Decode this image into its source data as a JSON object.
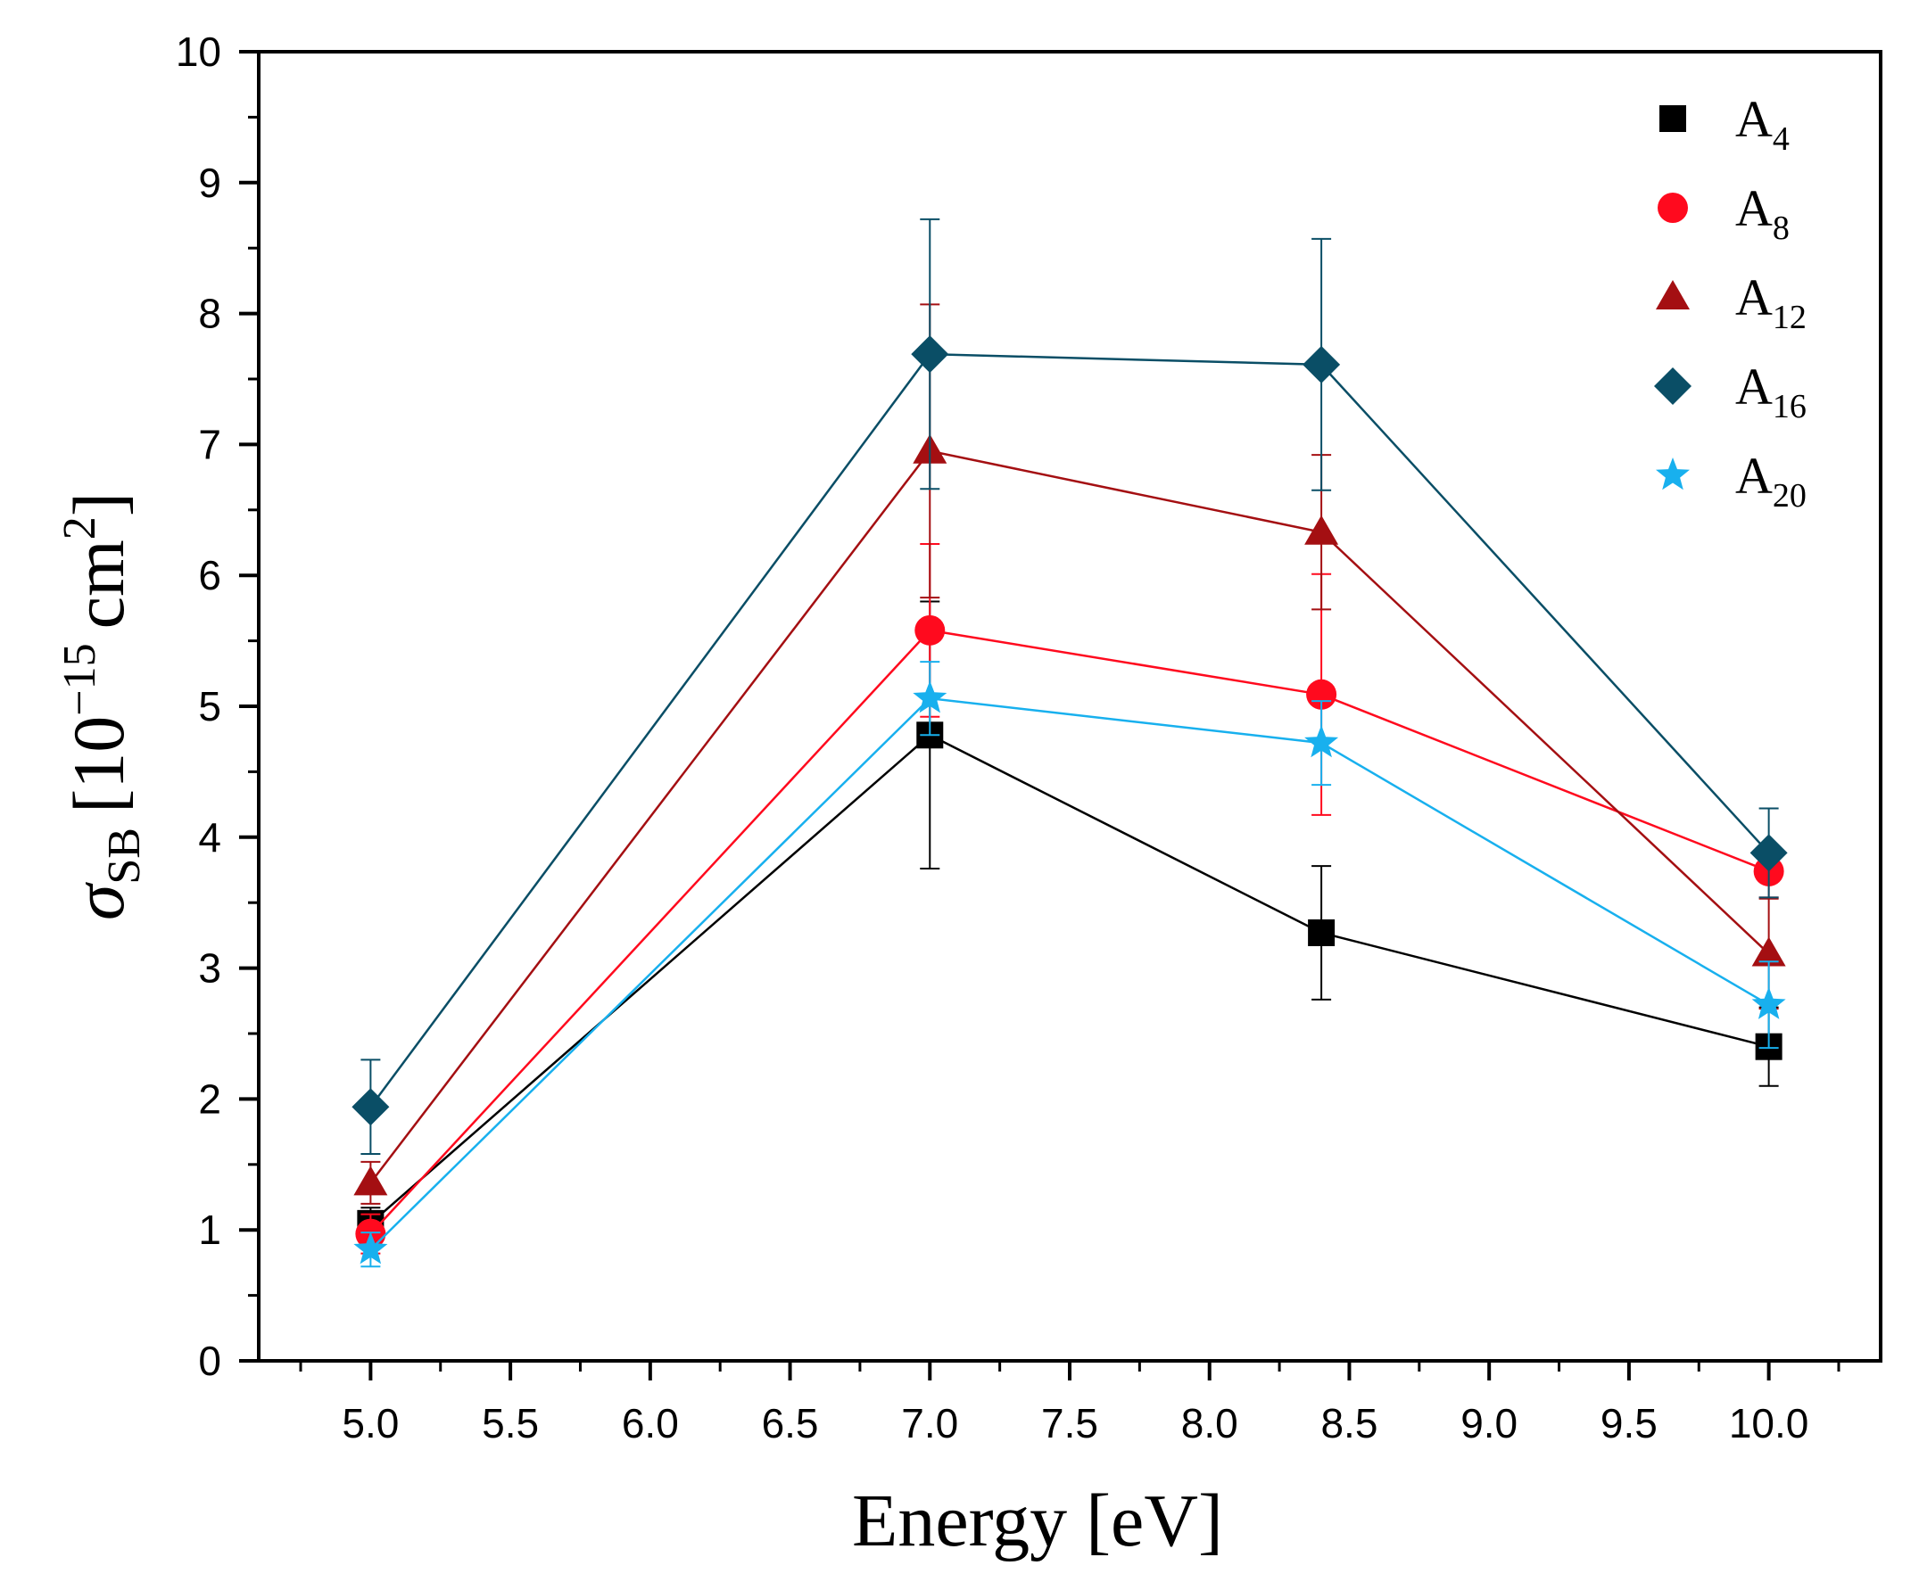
{
  "chart_data": {
    "type": "line",
    "title": "",
    "xlabel": "Energy [eV]",
    "ylabel": {
      "symbol": "σ",
      "subscript": "SB",
      "unit_prefix": "[10",
      "exponent": "−15",
      "unit": "cm",
      "unit_exponent": "2",
      "unit_suffix": "]"
    },
    "xlim": [
      4.6,
      10.4
    ],
    "ylim": [
      0,
      10
    ],
    "x_ticks": [
      "5.0",
      "5.5",
      "6.0",
      "6.5",
      "7.0",
      "7.5",
      "8.0",
      "8.5",
      "9.0",
      "9.5",
      "10.0"
    ],
    "y_ticks": [
      "0",
      "1",
      "2",
      "3",
      "4",
      "5",
      "6",
      "7",
      "8",
      "9",
      "10"
    ],
    "grid": false,
    "legend_position": "top-right",
    "x": [
      5.0,
      7.0,
      8.4,
      10.0
    ],
    "series": [
      {
        "name": "A",
        "sub": "4",
        "marker": "square",
        "color": "#000000",
        "values": [
          1.05,
          4.78,
          3.27,
          2.4
        ],
        "errors": [
          0.12,
          1.02,
          0.51,
          0.3
        ]
      },
      {
        "name": "A",
        "sub": "8",
        "marker": "circle",
        "color": "#ff0a1e",
        "values": [
          0.97,
          5.58,
          5.09,
          3.74
        ],
        "errors": [
          0.15,
          0.66,
          0.92,
          0.2
        ]
      },
      {
        "name": "A",
        "sub": "12",
        "marker": "triangle",
        "color": "#a40f12",
        "values": [
          1.36,
          6.95,
          6.33,
          3.11
        ],
        "errors": [
          0.16,
          1.12,
          0.59,
          0.42
        ]
      },
      {
        "name": "A",
        "sub": "16",
        "marker": "diamond",
        "color": "#0a4e66",
        "values": [
          1.94,
          7.69,
          7.61,
          3.88
        ],
        "errors": [
          0.36,
          1.03,
          0.96,
          0.34
        ]
      },
      {
        "name": "A",
        "sub": "20",
        "marker": "star",
        "color": "#18b0ee",
        "values": [
          0.85,
          5.06,
          4.72,
          2.72
        ],
        "errors": [
          0.13,
          0.28,
          0.32,
          0.33
        ]
      }
    ]
  }
}
